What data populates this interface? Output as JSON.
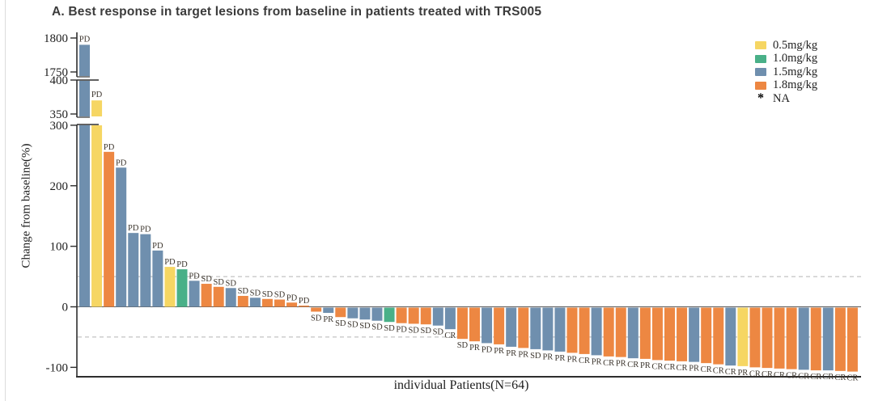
{
  "title": "A. Best response in target lesions from baseline in patients treated with TRS005",
  "chart_data": {
    "type": "bar",
    "subtype": "waterfall",
    "title": "A. Best response in target lesions from baseline in patients treated with TRS005",
    "xlabel": "individual Patients(N=64)",
    "ylabel": "Change from baseline(%)",
    "n_patients": 64,
    "y_axis": {
      "broken": true,
      "segments": [
        {
          "ticks": [
            1800,
            1750
          ]
        },
        {
          "ticks": [
            400,
            350
          ]
        },
        {
          "ticks": [
            300,
            200,
            100,
            0,
            -100
          ]
        }
      ]
    },
    "reference_lines": [
      50,
      -50
    ],
    "grid": false,
    "legend_position": "top-right",
    "legend": [
      {
        "label": "0.5mg/kg",
        "color": "#f6d663",
        "marker": "square"
      },
      {
        "label": "1.0mg/kg",
        "color": "#49b088",
        "marker": "square"
      },
      {
        "label": "1.5mg/kg",
        "color": "#6f8fae",
        "marker": "square"
      },
      {
        "label": "1.8mg/kg",
        "color": "#ed8742",
        "marker": "square"
      },
      {
        "label": "NA",
        "color": "#000000",
        "marker": "*"
      }
    ],
    "dose_colors": {
      "0.5mg/kg": "#f6d663",
      "1.0mg/kg": "#49b088",
      "1.5mg/kg": "#6f8fae",
      "1.8mg/kg": "#ed8742"
    },
    "patients": [
      {
        "value": 1790,
        "dose": "1.5mg/kg",
        "response": "PD"
      },
      {
        "value": 370,
        "dose": "0.5mg/kg",
        "response": "PD"
      },
      {
        "value": 256,
        "dose": "1.8mg/kg",
        "response": "PD"
      },
      {
        "value": 230,
        "dose": "1.5mg/kg",
        "response": "PD"
      },
      {
        "value": 122,
        "dose": "1.5mg/kg",
        "response": "PD"
      },
      {
        "value": 120,
        "dose": "1.5mg/kg",
        "response": "PD"
      },
      {
        "value": 93,
        "dose": "1.5mg/kg",
        "response": "PD"
      },
      {
        "value": 66,
        "dose": "0.5mg/kg",
        "response": "PD"
      },
      {
        "value": 62,
        "dose": "1.0mg/kg",
        "response": "PD"
      },
      {
        "value": 43,
        "dose": "1.5mg/kg",
        "response": "PD"
      },
      {
        "value": 38,
        "dose": "1.8mg/kg",
        "response": "SD"
      },
      {
        "value": 33,
        "dose": "1.8mg/kg",
        "response": "SD"
      },
      {
        "value": 31,
        "dose": "1.5mg/kg",
        "response": "SD"
      },
      {
        "value": 18,
        "dose": "1.8mg/kg",
        "response": "SD"
      },
      {
        "value": 15,
        "dose": "1.5mg/kg",
        "response": "SD"
      },
      {
        "value": 13,
        "dose": "1.8mg/kg",
        "response": "SD"
      },
      {
        "value": 12,
        "dose": "1.8mg/kg",
        "response": "SD"
      },
      {
        "value": 7,
        "dose": "1.8mg/kg",
        "response": "PD"
      },
      {
        "value": 2,
        "dose": "1.8mg/kg",
        "response": "PD"
      },
      {
        "value": -8,
        "dose": "1.8mg/kg",
        "response": "SD"
      },
      {
        "value": -10,
        "dose": "1.5mg/kg",
        "response": "PR"
      },
      {
        "value": -17,
        "dose": "1.8mg/kg",
        "response": "SD"
      },
      {
        "value": -19,
        "dose": "1.5mg/kg",
        "response": "SD"
      },
      {
        "value": -21,
        "dose": "1.5mg/kg",
        "response": "SD"
      },
      {
        "value": -23,
        "dose": "1.5mg/kg",
        "response": "SD"
      },
      {
        "value": -25,
        "dose": "1.0mg/kg",
        "response": "SD"
      },
      {
        "value": -27,
        "dose": "1.8mg/kg",
        "response": "PD"
      },
      {
        "value": -28,
        "dose": "1.8mg/kg",
        "response": "SD"
      },
      {
        "value": -29,
        "dose": "1.8mg/kg",
        "response": "SD"
      },
      {
        "value": -31,
        "dose": "1.5mg/kg",
        "response": "SD"
      },
      {
        "value": -37,
        "dose": "1.5mg/kg",
        "response": "CR"
      },
      {
        "value": -53,
        "dose": "1.8mg/kg",
        "response": "SD"
      },
      {
        "value": -57,
        "dose": "1.8mg/kg",
        "response": "PR"
      },
      {
        "value": -60,
        "dose": "1.5mg/kg",
        "response": "PD"
      },
      {
        "value": -62,
        "dose": "1.8mg/kg",
        "response": "PR"
      },
      {
        "value": -66,
        "dose": "1.5mg/kg",
        "response": "PR"
      },
      {
        "value": -68,
        "dose": "1.8mg/kg",
        "response": "PR"
      },
      {
        "value": -70,
        "dose": "1.5mg/kg",
        "response": "SD"
      },
      {
        "value": -72,
        "dose": "1.5mg/kg",
        "response": "PR"
      },
      {
        "value": -74,
        "dose": "1.5mg/kg",
        "response": "PR"
      },
      {
        "value": -76,
        "dose": "1.8mg/kg",
        "response": "PR"
      },
      {
        "value": -78,
        "dose": "1.8mg/kg",
        "response": "CR"
      },
      {
        "value": -80,
        "dose": "1.5mg/kg",
        "response": "PR"
      },
      {
        "value": -82,
        "dose": "1.8mg/kg",
        "response": "CR"
      },
      {
        "value": -83,
        "dose": "1.8mg/kg",
        "response": "PR"
      },
      {
        "value": -85,
        "dose": "1.5mg/kg",
        "response": "CR"
      },
      {
        "value": -86,
        "dose": "1.8mg/kg",
        "response": "PR"
      },
      {
        "value": -88,
        "dose": "1.8mg/kg",
        "response": "CR"
      },
      {
        "value": -89,
        "dose": "1.8mg/kg",
        "response": "CR"
      },
      {
        "value": -90,
        "dose": "1.8mg/kg",
        "response": "CR"
      },
      {
        "value": -91,
        "dose": "1.5mg/kg",
        "response": "PR"
      },
      {
        "value": -93,
        "dose": "1.8mg/kg",
        "response": "CR"
      },
      {
        "value": -95,
        "dose": "1.8mg/kg",
        "response": "CR"
      },
      {
        "value": -97,
        "dose": "1.5mg/kg",
        "response": "CR"
      },
      {
        "value": -98,
        "dose": "0.5mg/kg",
        "response": "PR"
      },
      {
        "value": -100,
        "dose": "1.8mg/kg",
        "response": "CR"
      },
      {
        "value": -101,
        "dose": "1.8mg/kg",
        "response": "CR"
      },
      {
        "value": -102,
        "dose": "1.8mg/kg",
        "response": "CR"
      },
      {
        "value": -103,
        "dose": "1.8mg/kg",
        "response": "CR"
      },
      {
        "value": -104,
        "dose": "1.5mg/kg",
        "response": "CR"
      },
      {
        "value": -105,
        "dose": "1.8mg/kg",
        "response": "CR"
      },
      {
        "value": -105,
        "dose": "1.5mg/kg",
        "response": "CR"
      },
      {
        "value": -106,
        "dose": "1.8mg/kg",
        "response": "CR"
      },
      {
        "value": -107,
        "dose": "1.8mg/kg",
        "response": "CR"
      }
    ]
  }
}
